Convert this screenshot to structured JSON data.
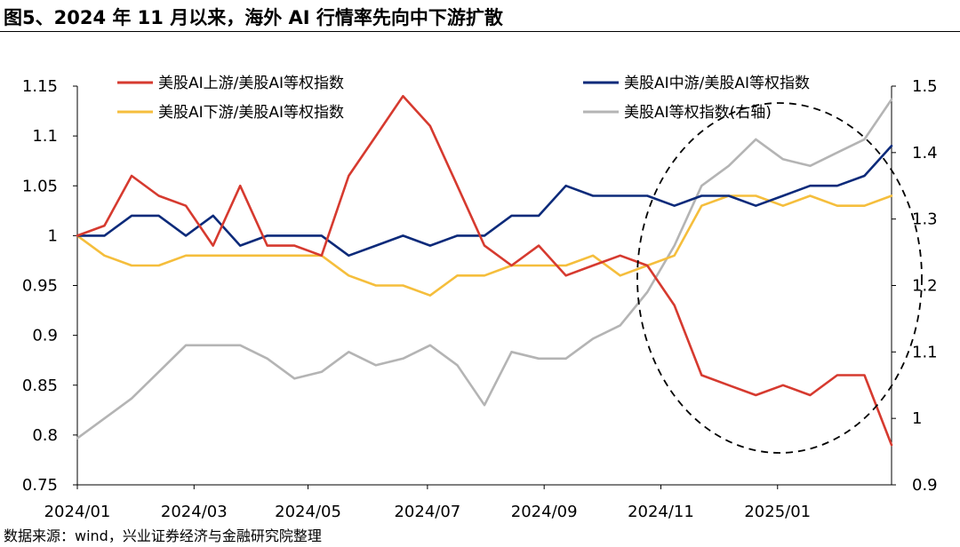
{
  "title": "图5、2024 年 11 月以来，海外 AI 行情率先向中下游扩散",
  "source": "数据来源：wind，兴业证券经济与金融研究院整理",
  "chart_data": {
    "type": "line",
    "x": [
      "2024/01/02",
      "2024/01/16",
      "2024/01/30",
      "2024/02/13",
      "2024/02/27",
      "2024/03/12",
      "2024/03/26",
      "2024/04/09",
      "2024/04/23",
      "2024/05/07",
      "2024/05/21",
      "2024/06/04",
      "2024/06/18",
      "2024/07/02",
      "2024/07/16",
      "2024/07/30",
      "2024/08/13",
      "2024/08/27",
      "2024/09/10",
      "2024/09/24",
      "2024/10/08",
      "2024/10/22",
      "2024/11/05",
      "2024/11/19",
      "2024/12/03",
      "2024/12/17",
      "2024/12/31",
      "2025/01/14",
      "2025/01/28",
      "2025/02/11",
      "2025/02/25"
    ],
    "x_tick_labels": [
      "2024/01",
      "2024/03",
      "2024/05",
      "2024/07",
      "2024/09",
      "2024/11",
      "2025/01"
    ],
    "x_tick_index": [
      0,
      4.3,
      8.5,
      12.9,
      17.2,
      21.5,
      25.8
    ],
    "series": [
      {
        "name": "美股AI上游/美股AI等权指数",
        "axis": "left",
        "color": "#d63a2f",
        "values": [
          1.0,
          1.01,
          1.06,
          1.04,
          1.03,
          0.99,
          1.05,
          0.99,
          0.99,
          0.98,
          1.06,
          1.1,
          1.14,
          1.11,
          1.05,
          0.99,
          0.97,
          0.99,
          0.96,
          0.97,
          0.98,
          0.97,
          0.93,
          0.86,
          0.85,
          0.84,
          0.85,
          0.84,
          0.86,
          0.86,
          0.79
        ]
      },
      {
        "name": "美股AI中游/美股AI等权指数",
        "axis": "left",
        "color": "#0c2a7a",
        "values": [
          1.0,
          1.0,
          1.02,
          1.02,
          1.0,
          1.02,
          0.99,
          1.0,
          1.0,
          1.0,
          0.98,
          0.99,
          1.0,
          0.99,
          1.0,
          1.0,
          1.02,
          1.02,
          1.05,
          1.04,
          1.04,
          1.04,
          1.03,
          1.04,
          1.04,
          1.03,
          1.04,
          1.05,
          1.05,
          1.06,
          1.09
        ]
      },
      {
        "name": "美股AI下游/美股AI等权指数",
        "axis": "left",
        "color": "#f5be3c",
        "values": [
          1.0,
          0.98,
          0.97,
          0.97,
          0.98,
          0.98,
          0.98,
          0.98,
          0.98,
          0.98,
          0.96,
          0.95,
          0.95,
          0.94,
          0.96,
          0.96,
          0.97,
          0.97,
          0.97,
          0.98,
          0.96,
          0.97,
          0.98,
          1.03,
          1.04,
          1.04,
          1.03,
          1.04,
          1.03,
          1.03,
          1.04
        ]
      },
      {
        "name": "美股AI等权指数(右轴)",
        "axis": "right",
        "color": "#b4b4b4",
        "values": [
          0.97,
          1.0,
          1.03,
          1.07,
          1.11,
          1.11,
          1.11,
          1.09,
          1.06,
          1.07,
          1.1,
          1.08,
          1.09,
          1.11,
          1.08,
          1.02,
          1.1,
          1.09,
          1.09,
          1.12,
          1.14,
          1.19,
          1.26,
          1.35,
          1.38,
          1.42,
          1.39,
          1.38,
          1.4,
          1.42,
          1.48
        ]
      }
    ],
    "y_left": {
      "min": 0.75,
      "max": 1.15,
      "ticks": [
        0.75,
        0.8,
        0.85,
        0.9,
        0.95,
        1,
        1.05,
        1.1,
        1.15
      ],
      "tick_labels": [
        "0.75",
        "0.8",
        "0.85",
        "0.9",
        "0.95",
        "1",
        "1.05",
        "1.1",
        "1.15"
      ]
    },
    "y_right": {
      "min": 0.9,
      "max": 1.5,
      "ticks": [
        0.9,
        1,
        1.1,
        1.2,
        1.3,
        1.4,
        1.5
      ],
      "tick_labels": [
        "0.9",
        "1",
        "1.1",
        "1.2",
        "1.3",
        "1.4",
        "1.5"
      ]
    },
    "legend_placement": "top",
    "annotation": "dashed ellipse highlighting 2024/11 onwards"
  }
}
